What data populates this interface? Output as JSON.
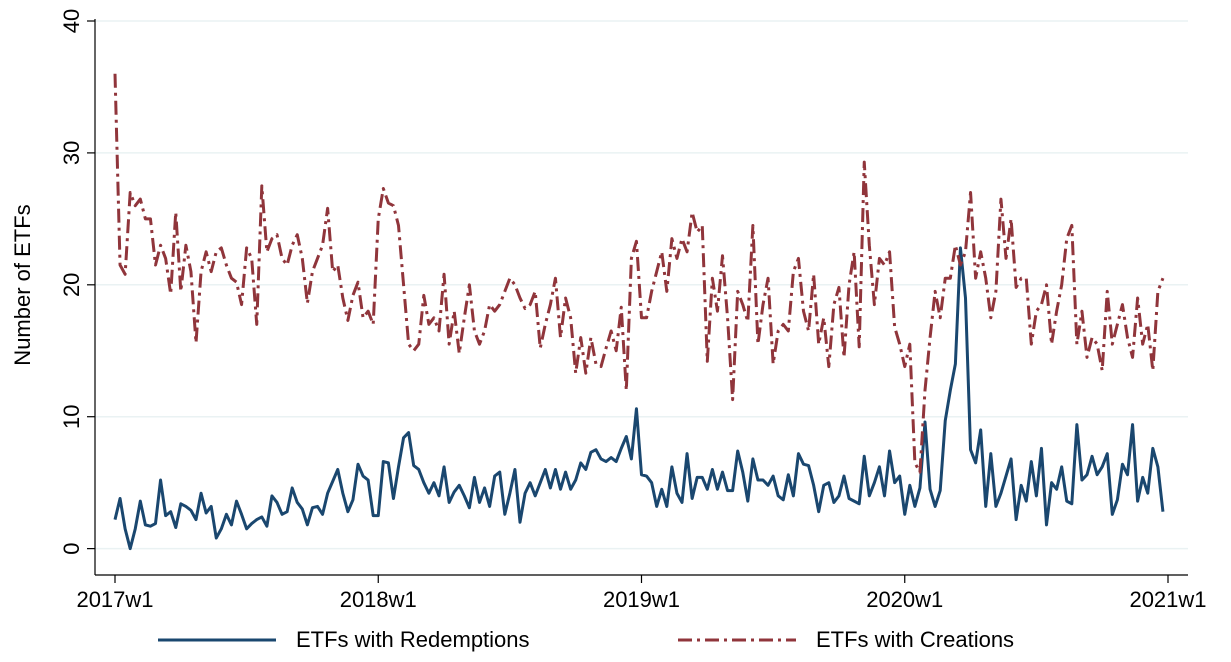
{
  "chart_data": {
    "type": "line",
    "y_label": "Number of ETFs",
    "x": [
      "2017w1",
      "2017w2",
      "2017w3",
      "2017w4",
      "2017w5",
      "2017w6",
      "2017w7",
      "2017w8",
      "2017w9",
      "2017w10",
      "2017w11",
      "2017w12",
      "2017w13",
      "2017w14",
      "2017w15",
      "2017w16",
      "2017w17",
      "2017w18",
      "2017w19",
      "2017w20",
      "2017w21",
      "2017w22",
      "2017w23",
      "2017w24",
      "2017w25",
      "2017w26",
      "2017w27",
      "2017w28",
      "2017w29",
      "2017w30",
      "2017w31",
      "2017w32",
      "2017w33",
      "2017w34",
      "2017w35",
      "2017w36",
      "2017w37",
      "2017w38",
      "2017w39",
      "2017w40",
      "2017w41",
      "2017w42",
      "2017w43",
      "2017w44",
      "2017w45",
      "2017w46",
      "2017w47",
      "2017w48",
      "2017w49",
      "2017w50",
      "2017w51",
      "2017w52",
      "2018w1",
      "2018w2",
      "2018w3",
      "2018w4",
      "2018w5",
      "2018w6",
      "2018w7",
      "2018w8",
      "2018w9",
      "2018w10",
      "2018w11",
      "2018w12",
      "2018w13",
      "2018w14",
      "2018w15",
      "2018w16",
      "2018w17",
      "2018w18",
      "2018w19",
      "2018w20",
      "2018w21",
      "2018w22",
      "2018w23",
      "2018w24",
      "2018w25",
      "2018w26",
      "2018w27",
      "2018w28",
      "2018w29",
      "2018w30",
      "2018w31",
      "2018w32",
      "2018w33",
      "2018w34",
      "2018w35",
      "2018w36",
      "2018w37",
      "2018w38",
      "2018w39",
      "2018w40",
      "2018w41",
      "2018w42",
      "2018w43",
      "2018w44",
      "2018w45",
      "2018w46",
      "2018w47",
      "2018w48",
      "2018w49",
      "2018w50",
      "2018w51",
      "2018w52",
      "2019w1",
      "2019w2",
      "2019w3",
      "2019w4",
      "2019w5",
      "2019w6",
      "2019w7",
      "2019w8",
      "2019w9",
      "2019w10",
      "2019w11",
      "2019w12",
      "2019w13",
      "2019w14",
      "2019w15",
      "2019w16",
      "2019w17",
      "2019w18",
      "2019w19",
      "2019w20",
      "2019w21",
      "2019w22",
      "2019w23",
      "2019w24",
      "2019w25",
      "2019w26",
      "2019w27",
      "2019w28",
      "2019w29",
      "2019w30",
      "2019w31",
      "2019w32",
      "2019w33",
      "2019w34",
      "2019w35",
      "2019w36",
      "2019w37",
      "2019w38",
      "2019w39",
      "2019w40",
      "2019w41",
      "2019w42",
      "2019w43",
      "2019w44",
      "2019w45",
      "2019w46",
      "2019w47",
      "2019w48",
      "2019w49",
      "2019w50",
      "2019w51",
      "2019w52",
      "2020w1",
      "2020w2",
      "2020w3",
      "2020w4",
      "2020w5",
      "2020w6",
      "2020w7",
      "2020w8",
      "2020w9",
      "2020w10",
      "2020w11",
      "2020w12",
      "2020w13",
      "2020w14",
      "2020w15",
      "2020w16",
      "2020w17",
      "2020w18",
      "2020w19",
      "2020w20",
      "2020w21",
      "2020w22",
      "2020w23",
      "2020w24",
      "2020w25",
      "2020w26",
      "2020w27",
      "2020w28",
      "2020w29",
      "2020w30",
      "2020w31",
      "2020w32",
      "2020w33",
      "2020w34",
      "2020w35",
      "2020w36",
      "2020w37",
      "2020w38",
      "2020w39",
      "2020w40",
      "2020w41",
      "2020w42",
      "2020w43",
      "2020w44",
      "2020w45",
      "2020w46",
      "2020w47",
      "2020w48",
      "2020w49",
      "2020w50",
      "2020w51",
      "2020w52"
    ],
    "series": [
      {
        "name": "ETFs with Redemptions",
        "color": "#1a476f",
        "dash": "solid",
        "values": [
          2.2,
          3.8,
          1.5,
          0,
          1.5,
          3.6,
          1.8,
          1.7,
          1.9,
          5.2,
          2.5,
          2.8,
          1.6,
          3.4,
          3.2,
          2.9,
          2.2,
          4.2,
          2.7,
          3.2,
          0.8,
          1.5,
          2.6,
          1.8,
          3.6,
          2.6,
          1.5,
          1.9,
          2.2,
          2.4,
          1.7,
          4,
          3.5,
          2.6,
          2.8,
          4.6,
          3.5,
          3,
          1.8,
          3.1,
          3.2,
          2.6,
          4.2,
          5.1,
          6,
          4.2,
          2.8,
          3.7,
          6.4,
          5.5,
          5.2,
          2.5,
          2.5,
          6.6,
          6.5,
          3.8,
          6.2,
          8.4,
          8.8,
          6.3,
          6,
          5,
          4.2,
          5,
          4,
          6.2,
          3.5,
          4.3,
          4.8,
          4,
          3.1,
          5.4,
          3.5,
          4.6,
          3.2,
          5.5,
          5.8,
          2.6,
          4.2,
          6,
          2,
          4.2,
          5,
          4,
          5,
          6,
          4.6,
          6,
          4.5,
          5.8,
          4.5,
          5.2,
          6.5,
          6,
          7.3,
          7.5,
          6.8,
          6.6,
          6.9,
          6.6,
          7.6,
          8.5,
          6.8,
          10.6,
          5.6,
          5.5,
          5,
          3.2,
          4.5,
          3.2,
          6.2,
          4.2,
          3.5,
          7.2,
          3.8,
          5.4,
          5.4,
          4.5,
          6,
          4.5,
          5.8,
          4.4,
          4.4,
          7.4,
          5.8,
          3.6,
          6.8,
          5.2,
          5.2,
          4.8,
          5.5,
          4,
          3.7,
          5.6,
          4,
          7.2,
          6.4,
          6.3,
          4.8,
          2.8,
          4.8,
          5,
          3.5,
          4,
          5.5,
          3.8,
          3.6,
          3.4,
          7,
          4,
          5,
          6.2,
          4,
          7.4,
          5,
          5.5,
          2.6,
          4.8,
          3.2,
          4.6,
          9.6,
          4.5,
          3.2,
          4.4,
          9.7,
          12,
          14,
          22.8,
          19,
          7.5,
          6.5,
          9,
          3.2,
          7.2,
          3.2,
          4.2,
          5.5,
          6.8,
          2.2,
          4.8,
          3.6,
          6.6,
          4,
          7.6,
          1.8,
          5,
          4.5,
          6.2,
          3.6,
          3.4,
          9.4,
          5.2,
          5.6,
          7,
          5.6,
          6.2,
          7.2,
          2.6,
          3.7,
          6.4,
          5.6,
          9.4,
          3.6,
          5.4,
          4.2,
          7.6,
          6.2,
          2.8
        ]
      },
      {
        "name": "ETFs with Creations",
        "color": "#90353b",
        "dash": "dashdot",
        "values": [
          36,
          21.5,
          20.8,
          27,
          26,
          26.5,
          25,
          25,
          21.5,
          23,
          22,
          19.3,
          25.5,
          19.5,
          23,
          21,
          15.6,
          21,
          22.5,
          21,
          22.5,
          22.8,
          21.5,
          20.5,
          20.2,
          18.5,
          22.8,
          22,
          17,
          27.5,
          22.5,
          23.5,
          23.8,
          22,
          21.5,
          23,
          23.8,
          22,
          18.6,
          21,
          22,
          23,
          25.8,
          21,
          21.5,
          19,
          17.3,
          19.2,
          20.2,
          17.5,
          18,
          17,
          25,
          27.3,
          26.2,
          26,
          24.5,
          20,
          15.5,
          15,
          15.5,
          19.2,
          17,
          17.5,
          16.5,
          20.8,
          15.5,
          18,
          14.8,
          17.5,
          20,
          16.5,
          15.5,
          16.5,
          18.5,
          18,
          18.5,
          19.5,
          20.5,
          20,
          19,
          18.2,
          18.5,
          19.5,
          15.2,
          17,
          18.5,
          20.5,
          16,
          19,
          17.5,
          13.3,
          16,
          13.3,
          16,
          14,
          13.8,
          15.2,
          16.5,
          15,
          18.3,
          12,
          22,
          23.3,
          17.5,
          17.5,
          19.5,
          21,
          22.5,
          19.5,
          23.5,
          22,
          23.5,
          22.5,
          25.5,
          24,
          24.5,
          14.2,
          20.5,
          18,
          22.2,
          17.5,
          11.3,
          19.5,
          18.5,
          17.2,
          24.5,
          15.5,
          18.5,
          20.5,
          14,
          16.5,
          17,
          16.5,
          21,
          22,
          18,
          16.5,
          20.8,
          15.5,
          17.5,
          13.8,
          18.5,
          19.8,
          14.5,
          20,
          22.5,
          15.3,
          29.3,
          23,
          18.5,
          22,
          21.5,
          22.5,
          16.8,
          15.5,
          13.8,
          15.5,
          6.5,
          5.8,
          12,
          16,
          19.5,
          17.5,
          20.5,
          20.5,
          23,
          21.5,
          22.5,
          27,
          20.5,
          22.5,
          20.5,
          17.5,
          19.5,
          26.5,
          22,
          25,
          19.8,
          20.5,
          20.5,
          15.5,
          18,
          18.5,
          20,
          15.5,
          18,
          20,
          23.5,
          24.5,
          15.5,
          18,
          14.5,
          16,
          15.5,
          13.5,
          19.5,
          15.5,
          17,
          18.5,
          16,
          14.5,
          19,
          15.5,
          17,
          13.5,
          19.5,
          20.5
        ]
      }
    ],
    "xlim": [
      "2017w1",
      "2021w1"
    ],
    "xticks": [
      "2017w1",
      "2018w1",
      "2019w1",
      "2020w1",
      "2021w1"
    ],
    "ylim": [
      -2,
      40
    ],
    "yticks": [
      0,
      10,
      20,
      30,
      40
    ],
    "grid": true,
    "legend": "bottom"
  }
}
